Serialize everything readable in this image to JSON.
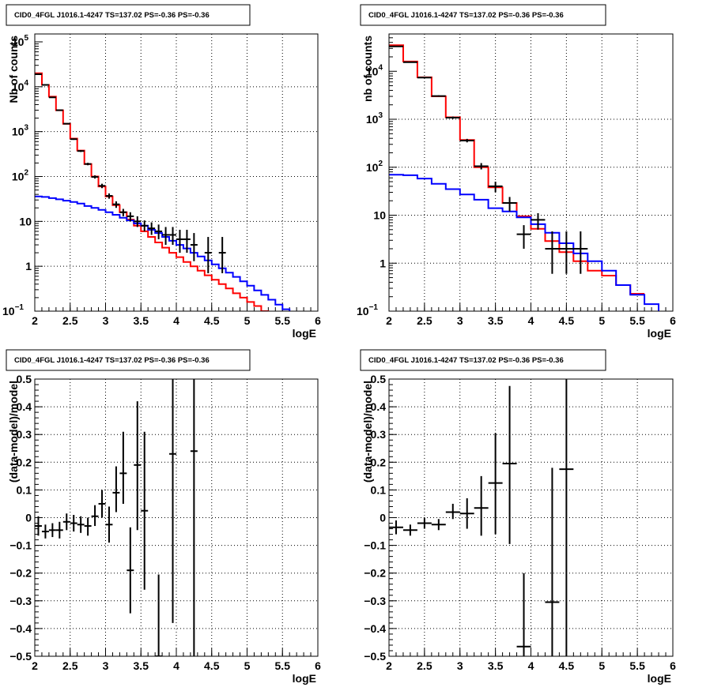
{
  "chart_data": [
    {
      "type": "line",
      "title": "CID0_4FGL J1016.1-4247 TS=137.02 PS=-0.36 PS=-0.36",
      "xlabel": "logE",
      "ylabel": "Nb of counts",
      "xlim": [
        2,
        6
      ],
      "ylim": [
        0.1,
        150000
      ],
      "yscale": "log",
      "grid": true,
      "x_ticks": [
        "2",
        "2.5",
        "3",
        "3.5",
        "4",
        "4.5",
        "5",
        "5.5",
        "6"
      ],
      "y_ticks": [
        {
          "v": 0.1,
          "label": "10",
          "sup": "−1"
        },
        {
          "v": 1,
          "label": "1",
          "sup": ""
        },
        {
          "v": 10,
          "label": "10",
          "sup": ""
        },
        {
          "v": 100,
          "label": "10",
          "sup": "2"
        },
        {
          "v": 1000,
          "label": "10",
          "sup": "3"
        },
        {
          "v": 10000,
          "label": "10",
          "sup": "4"
        },
        {
          "v": 100000,
          "label": "10",
          "sup": "5"
        }
      ],
      "series": [
        {
          "kind": "step",
          "color": "#ff0000",
          "edges": [
            2.0,
            2.1,
            2.2,
            2.3,
            2.4,
            2.5,
            2.6,
            2.7,
            2.8,
            2.9,
            3.0,
            3.1,
            3.2,
            3.3,
            3.4,
            3.5,
            3.6,
            3.7,
            3.8,
            3.9,
            4.0,
            4.1,
            4.2,
            4.3,
            4.4,
            4.5,
            4.6,
            4.7,
            4.8,
            4.9,
            5.0,
            5.1,
            5.2,
            5.3,
            5.4,
            5.5
          ],
          "values": [
            20000,
            11000,
            6000,
            3000,
            1500,
            700,
            380,
            190,
            100,
            60,
            36,
            23,
            16,
            11,
            8,
            6,
            4.5,
            3.4,
            2.6,
            2.0,
            1.6,
            1.25,
            1.0,
            0.8,
            0.63,
            0.5,
            0.4,
            0.32,
            0.25,
            0.2,
            0.16,
            0.13,
            0.1,
            0.08,
            0.06
          ]
        },
        {
          "kind": "step",
          "color": "#0000ff",
          "edges": [
            2.0,
            2.1,
            2.2,
            2.3,
            2.4,
            2.5,
            2.6,
            2.7,
            2.8,
            2.9,
            3.0,
            3.1,
            3.2,
            3.3,
            3.4,
            3.5,
            3.6,
            3.7,
            3.8,
            3.9,
            4.0,
            4.1,
            4.2,
            4.3,
            4.4,
            4.5,
            4.6,
            4.7,
            4.8,
            4.9,
            5.0,
            5.1,
            5.2,
            5.3,
            5.4,
            5.5,
            5.6,
            5.7,
            5.8,
            5.9,
            6.0
          ],
          "values": [
            36,
            35,
            33,
            31,
            29,
            27,
            25,
            22,
            20,
            18,
            16,
            14,
            12,
            10.5,
            9,
            8,
            6.5,
            5.5,
            4.5,
            3.7,
            3.0,
            2.5,
            2.0,
            1.65,
            1.35,
            1.1,
            0.9,
            0.72,
            0.58,
            0.46,
            0.37,
            0.29,
            0.23,
            0.18,
            0.14,
            0.11,
            0.09,
            0.08,
            0.08,
            0.08
          ]
        },
        {
          "kind": "points",
          "color": "#000000",
          "x": [
            2.05,
            2.15,
            2.25,
            2.35,
            2.45,
            2.55,
            2.65,
            2.75,
            2.85,
            2.95,
            3.05,
            3.15,
            3.25,
            3.35,
            3.45,
            3.55,
            3.65,
            3.75,
            3.85,
            3.95,
            4.05,
            4.15,
            4.25,
            4.45,
            4.65
          ],
          "y": [
            19000,
            11000,
            5800,
            3000,
            1500,
            680,
            370,
            190,
            98,
            62,
            37,
            24,
            16,
            13,
            10,
            8,
            7,
            6,
            5,
            5,
            4,
            4,
            3,
            2,
            2
          ],
          "lo": [
            18700,
            10800,
            5650,
            2900,
            1460,
            655,
            352,
            178,
            90,
            55,
            32,
            20,
            13,
            10,
            7.5,
            6,
            5,
            4,
            3,
            3,
            2,
            2,
            1.3,
            0.7,
            0.7
          ],
          "hi": [
            19300,
            11200,
            5950,
            3100,
            1540,
            705,
            388,
            202,
            106,
            69,
            42,
            28,
            19,
            16,
            13,
            10.5,
            9.5,
            8.5,
            7.5,
            7.5,
            6.5,
            6.5,
            5.5,
            4.5,
            4.5
          ],
          "xerr": 0.05
        }
      ]
    },
    {
      "type": "line",
      "title": "CID0_4FGL J1016.1-4247 TS=137.02 PS=-0.36 PS=-0.36",
      "xlabel": "logE",
      "ylabel": "nb of counts",
      "xlim": [
        2,
        6
      ],
      "ylim": [
        0.1,
        60000
      ],
      "yscale": "log",
      "grid": true,
      "x_ticks": [
        "2",
        "2.5",
        "3",
        "3.5",
        "4",
        "4.5",
        "5",
        "5.5",
        "6"
      ],
      "y_ticks": [
        {
          "v": 0.1,
          "label": "10",
          "sup": "−1"
        },
        {
          "v": 1,
          "label": "1",
          "sup": ""
        },
        {
          "v": 10,
          "label": "10",
          "sup": ""
        },
        {
          "v": 100,
          "label": "10",
          "sup": "2"
        },
        {
          "v": 1000,
          "label": "10",
          "sup": "3"
        },
        {
          "v": 10000,
          "label": "10",
          "sup": "4"
        }
      ],
      "series": [
        {
          "kind": "step",
          "color": "#ff0000",
          "edges": [
            2.0,
            2.2,
            2.4,
            2.6,
            2.8,
            3.0,
            3.2,
            3.4,
            3.6,
            3.8,
            4.0,
            4.2,
            4.4,
            4.6,
            4.8,
            5.0,
            5.2,
            5.4,
            5.6
          ],
          "values": [
            35000,
            16000,
            7500,
            3000,
            1100,
            370,
            100,
            38,
            18,
            9.5,
            5.2,
            2.9,
            1.7,
            1.1,
            0.7,
            0.55,
            0.35,
            0.23
          ]
        },
        {
          "kind": "step",
          "color": "#0000ff",
          "edges": [
            2.0,
            2.2,
            2.4,
            2.6,
            2.8,
            3.0,
            3.2,
            3.4,
            3.6,
            3.8,
            4.0,
            4.2,
            4.4,
            4.6,
            4.8,
            5.0,
            5.2,
            5.4,
            5.6,
            5.8,
            6.0
          ],
          "values": [
            70,
            68,
            58,
            45,
            35,
            27,
            21,
            14,
            12,
            9,
            6.5,
            4.3,
            2.6,
            1.6,
            1.1,
            0.7,
            0.35,
            0.22,
            0.14,
            0.09
          ]
        },
        {
          "kind": "points",
          "color": "#000000",
          "x": [
            2.1,
            2.3,
            2.5,
            2.7,
            2.9,
            3.1,
            3.3,
            3.5,
            3.7,
            3.9,
            4.1,
            4.3,
            4.5,
            4.7
          ],
          "y": [
            33000,
            15500,
            7400,
            3050,
            1080,
            360,
            105,
            40,
            18,
            4,
            8,
            2,
            2,
            2
          ],
          "lo": [
            32600,
            15250,
            7230,
            2940,
            1020,
            330,
            90,
            30,
            12,
            2,
            5,
            0.6,
            0.6,
            0.6
          ],
          "hi": [
            33400,
            15750,
            7570,
            3160,
            1140,
            390,
            122,
            50,
            24,
            6.2,
            11,
            4.6,
            4.6,
            4.6
          ],
          "xerr": 0.1
        }
      ]
    },
    {
      "type": "scatter",
      "title": "CID0_4FGL J1016.1-4247 TS=137.02 PS=-0.36 PS=-0.36",
      "xlabel": "logE",
      "ylabel": "(data-model)/model",
      "xlim": [
        2,
        6
      ],
      "ylim": [
        -0.5,
        0.5
      ],
      "yscale": "linear",
      "grid": true,
      "x_ticks": [
        "2",
        "2.5",
        "3",
        "3.5",
        "4",
        "4.5",
        "5",
        "5.5",
        "6"
      ],
      "y_ticks": [
        {
          "v": -0.5,
          "label": "−0.5",
          "sup": ""
        },
        {
          "v": -0.4,
          "label": "−0.4",
          "sup": ""
        },
        {
          "v": -0.3,
          "label": "−0.3",
          "sup": ""
        },
        {
          "v": -0.2,
          "label": "−0.2",
          "sup": ""
        },
        {
          "v": -0.1,
          "label": "−0.1",
          "sup": ""
        },
        {
          "v": 0,
          "label": "0",
          "sup": ""
        },
        {
          "v": 0.1,
          "label": "0.1",
          "sup": ""
        },
        {
          "v": 0.2,
          "label": "0.2",
          "sup": ""
        },
        {
          "v": 0.3,
          "label": "0.3",
          "sup": ""
        },
        {
          "v": 0.4,
          "label": "0.4",
          "sup": ""
        },
        {
          "v": 0.5,
          "label": "0.5",
          "sup": ""
        }
      ],
      "series": [
        {
          "kind": "points",
          "color": "#000000",
          "x": [
            2.05,
            2.15,
            2.25,
            2.35,
            2.45,
            2.55,
            2.65,
            2.75,
            2.85,
            2.95,
            3.05,
            3.15,
            3.25,
            3.35,
            3.45,
            3.55,
            3.75,
            3.95,
            4.25
          ],
          "y": [
            -0.03,
            -0.05,
            -0.045,
            -0.045,
            -0.015,
            -0.02,
            -0.025,
            -0.03,
            0.005,
            0.05,
            -0.025,
            0.09,
            0.16,
            -0.19,
            0.19,
            0.025,
            -0.5,
            0.23,
            0.24
          ],
          "lo": [
            -0.065,
            -0.075,
            -0.07,
            -0.075,
            -0.045,
            -0.05,
            -0.055,
            -0.065,
            -0.03,
            0.0,
            -0.09,
            0.02,
            0.05,
            -0.345,
            -0.045,
            -0.26,
            -0.62,
            -0.38,
            -0.6
          ],
          "hi": [
            0.005,
            -0.025,
            -0.02,
            -0.015,
            0.015,
            0.01,
            0.005,
            0.0,
            0.045,
            0.1,
            0.04,
            0.185,
            0.31,
            -0.035,
            0.42,
            0.31,
            -0.205,
            0.62,
            0.62
          ],
          "xerr": 0.05
        }
      ]
    },
    {
      "type": "scatter",
      "title": "CID0_4FGL J1016.1-4247 TS=137.02 PS=-0.36 PS=-0.36",
      "xlabel": "logE",
      "ylabel": "(data-model)/model",
      "xlim": [
        2,
        6
      ],
      "ylim": [
        -0.5,
        0.5
      ],
      "yscale": "linear",
      "grid": true,
      "x_ticks": [
        "2",
        "2.5",
        "3",
        "3.5",
        "4",
        "4.5",
        "5",
        "5.5",
        "6"
      ],
      "y_ticks": [
        {
          "v": -0.5,
          "label": "−0.5",
          "sup": ""
        },
        {
          "v": -0.4,
          "label": "−0.4",
          "sup": ""
        },
        {
          "v": -0.3,
          "label": "−0.3",
          "sup": ""
        },
        {
          "v": -0.2,
          "label": "−0.2",
          "sup": ""
        },
        {
          "v": -0.1,
          "label": "−0.1",
          "sup": ""
        },
        {
          "v": 0,
          "label": "0",
          "sup": ""
        },
        {
          "v": 0.1,
          "label": "0.1",
          "sup": ""
        },
        {
          "v": 0.2,
          "label": "0.2",
          "sup": ""
        },
        {
          "v": 0.3,
          "label": "0.3",
          "sup": ""
        },
        {
          "v": 0.4,
          "label": "0.4",
          "sup": ""
        },
        {
          "v": 0.5,
          "label": "0.5",
          "sup": ""
        }
      ],
      "series": [
        {
          "kind": "points",
          "color": "#000000",
          "x": [
            2.1,
            2.3,
            2.5,
            2.7,
            2.9,
            3.1,
            3.3,
            3.5,
            3.7,
            3.9,
            4.3,
            4.5
          ],
          "y": [
            -0.035,
            -0.045,
            -0.02,
            -0.025,
            0.02,
            0.015,
            0.035,
            0.125,
            0.195,
            -0.465,
            -0.305,
            0.175
          ],
          "lo": [
            -0.06,
            -0.065,
            -0.04,
            -0.045,
            -0.005,
            -0.04,
            -0.065,
            -0.06,
            -0.095,
            -0.62,
            -0.6,
            -0.6
          ],
          "hi": [
            -0.01,
            -0.025,
            0.0,
            -0.005,
            0.05,
            0.07,
            0.15,
            0.305,
            0.475,
            -0.2,
            0.18,
            0.62
          ],
          "xerr": 0.1
        }
      ]
    }
  ]
}
